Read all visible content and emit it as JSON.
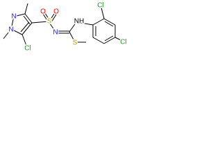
{
  "atoms": {
    "pyrazole_n2": "N",
    "pyrazole_n1": "N",
    "pyrazole_cl": "Cl",
    "sulfonyl_s": "S",
    "sulfonyl_o1": "O",
    "sulfonyl_o2": "O",
    "imine_n": "N",
    "amine_nh": "NH",
    "thio_s": "S",
    "ring_cl_ortho": "Cl",
    "ring_cl_para": "Cl"
  }
}
